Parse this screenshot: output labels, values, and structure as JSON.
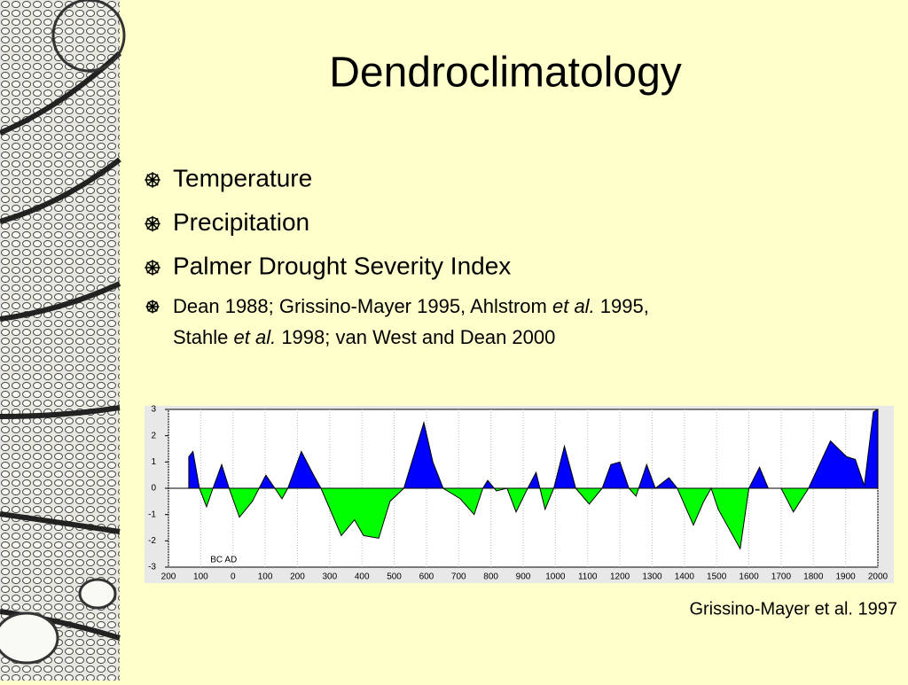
{
  "title": "Dendroclimatology",
  "bullets": [
    "Temperature",
    "Precipitation",
    "Palmer Drought Severity Index"
  ],
  "references": [
    [
      {
        "text": "Dean 1988; Grissino-Mayer 1995, Ahlstrom ",
        "italic": false
      },
      {
        "text": "et al.",
        "italic": true
      },
      {
        "text": " 1995,",
        "italic": false
      }
    ],
    [
      {
        "text": "Stahle ",
        "italic": false
      },
      {
        "text": "et al.",
        "italic": true
      },
      {
        "text": " 1998; van West and Dean 2000",
        "italic": false
      }
    ]
  ],
  "chart_data": {
    "type": "area",
    "annotation": "BC AD",
    "x": [
      -137,
      -124,
      -104,
      -82,
      -62,
      -35,
      -12,
      20,
      60,
      102,
      130,
      152,
      170,
      212,
      250,
      273,
      336,
      377,
      405,
      452,
      487,
      530,
      592,
      620,
      652,
      705,
      748,
      775,
      790,
      817,
      850,
      878,
      914,
      940,
      968,
      995,
      1028,
      1063,
      1105,
      1145,
      1172,
      1200,
      1228,
      1250,
      1283,
      1310,
      1352,
      1378,
      1428,
      1460,
      1483,
      1505,
      1573,
      1600,
      1633,
      1660,
      1700,
      1738,
      1785,
      1853,
      1903,
      1930,
      1958,
      1986,
      2000
    ],
    "values": [
      1.2,
      1.4,
      0,
      -0.7,
      0,
      0.9,
      0,
      -1.1,
      -0.5,
      0.5,
      0,
      -0.4,
      0,
      1.4,
      0.5,
      0,
      -1.8,
      -1.2,
      -1.8,
      -1.9,
      -0.5,
      0,
      2.5,
      1.0,
      0,
      -0.4,
      -1.0,
      0,
      0.3,
      -0.1,
      0,
      -0.9,
      0,
      0.6,
      -0.8,
      0,
      1.6,
      0,
      -0.6,
      0,
      0.9,
      1.0,
      0,
      -0.3,
      0.9,
      0,
      0.4,
      0,
      -1.4,
      -0.5,
      0,
      -0.8,
      -2.3,
      0,
      0.8,
      0,
      0,
      -0.9,
      0,
      1.8,
      1.2,
      1.1,
      0.1,
      2.9,
      3.0
    ],
    "color_positive": "#0000ff",
    "color_negative": "#00ff00",
    "xlim": [
      -200,
      2000
    ],
    "ylim": [
      -3,
      3
    ],
    "xticks": [
      {
        "value": -200,
        "label": "200"
      },
      {
        "value": -100,
        "label": "100"
      },
      0,
      100,
      200,
      300,
      400,
      500,
      600,
      700,
      800,
      900,
      1000,
      1100,
      1200,
      1300,
      1400,
      1500,
      1600,
      1700,
      1800,
      1900,
      2000
    ],
    "yticks": [
      -3,
      -2,
      -1,
      0,
      1,
      2,
      3
    ],
    "grid": true
  },
  "caption": "Grissino-Mayer et al. 1997"
}
